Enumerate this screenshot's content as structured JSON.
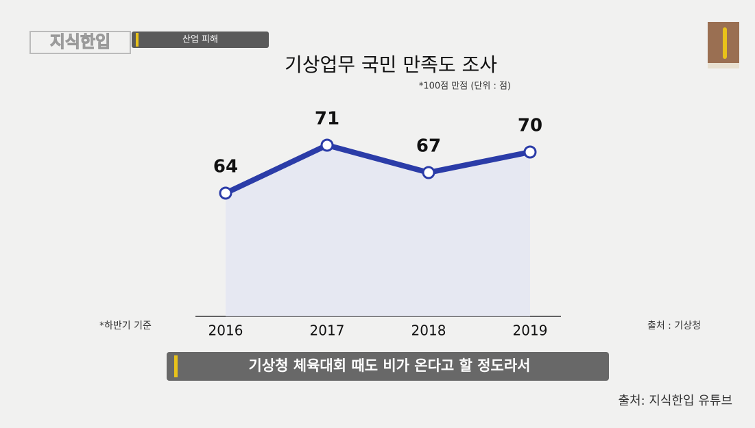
{
  "header": {
    "logo": "지식한입",
    "tag": "산업 피해"
  },
  "chart_data": {
    "type": "line",
    "title": "기상업무 국민 만족도 조사",
    "subtitle": "*100점 만점 (단위 : 점)",
    "categories": [
      "2016",
      "2017",
      "2018",
      "2019"
    ],
    "values": [
      64,
      71,
      67,
      70
    ],
    "color": "#2b3ca8",
    "area_color": "#e4e6f2",
    "area": true,
    "ylim": [
      46,
      76
    ],
    "footnote": "*하반기 기준",
    "source": "출처 : 기상청"
  },
  "caption": "기상청 체육대회 때도 비가 온다고 할 정도라서",
  "credit": "출처: 지식한입 유튜브"
}
